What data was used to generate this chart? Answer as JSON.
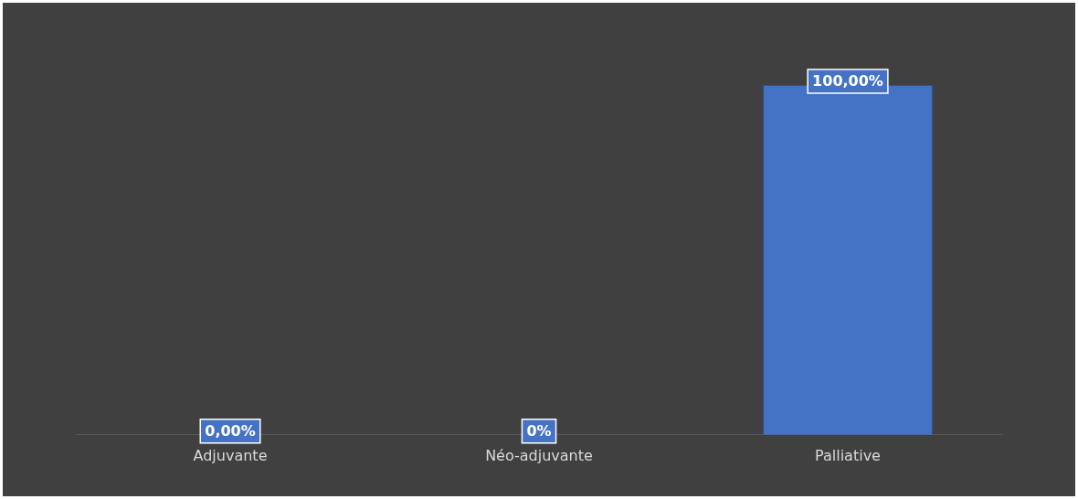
{
  "chart_data": {
    "type": "bar",
    "categories": [
      "Adjuvante",
      "Néo-adjuvante",
      "Palliative"
    ],
    "values": [
      0,
      0,
      100
    ],
    "value_labels": [
      "0,00%",
      "0%",
      "100,00%"
    ],
    "color": "#4472c4",
    "grid": false,
    "legend": false
  }
}
